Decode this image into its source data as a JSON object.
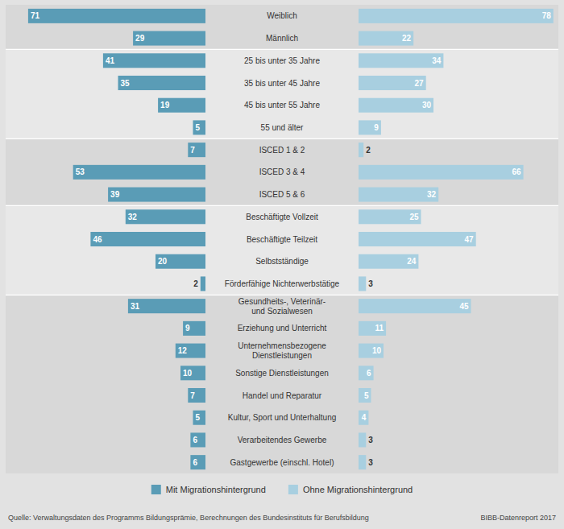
{
  "chart_data": {
    "type": "bar",
    "orientation": "horizontal",
    "categories": [
      "Weiblich",
      "Männlich",
      "25 bis unter 35 Jahre",
      "35 bis unter 45 Jahre",
      "45 bis unter 55 Jahre",
      "55 und älter",
      "ISCED 1 & 2",
      "ISCED 3 & 4",
      "ISCED 5 & 6",
      "Beschäftigte Vollzeit",
      "Beschäftigte Teilzeit",
      "Selbstständige",
      "Förderfähige Nichterwerbstätige",
      "Gesundheits-, Veterinär-\nund Sozialwesen",
      "Erziehung und Unterricht",
      "Unternehmensbezogene\nDienstleistungen",
      "Sonstige Dienstleistungen",
      "Handel und Reparatur",
      "Kultur, Sport und Unterhaltung",
      "Verarbeitendes Gewerbe",
      "Gastgewerbe (einschl. Hotel)"
    ],
    "series": [
      {
        "name": "Mit Migrationshintergrund",
        "color": "#5a9cb6",
        "values": [
          71,
          29,
          41,
          35,
          19,
          5,
          7,
          53,
          39,
          32,
          46,
          20,
          2,
          31,
          9,
          12,
          10,
          7,
          5,
          6,
          6
        ]
      },
      {
        "name": "Ohne Migrationshintergrund",
        "color": "#a8cfe0",
        "values": [
          78,
          22,
          34,
          27,
          30,
          9,
          2,
          66,
          32,
          25,
          47,
          24,
          3,
          45,
          11,
          10,
          6,
          5,
          4,
          3,
          3
        ]
      }
    ],
    "xlim": [
      0,
      80
    ],
    "tick_labels": false,
    "grid": false,
    "data_labels": true,
    "legend": "bottom",
    "annotations": [
      "Quelle: Verwaltungsdaten des Programms Bildungsprämie, Berechnungen des Bundesinstituts für Berufsbildung",
      "BIBB-Datenreport 2017"
    ]
  }
}
